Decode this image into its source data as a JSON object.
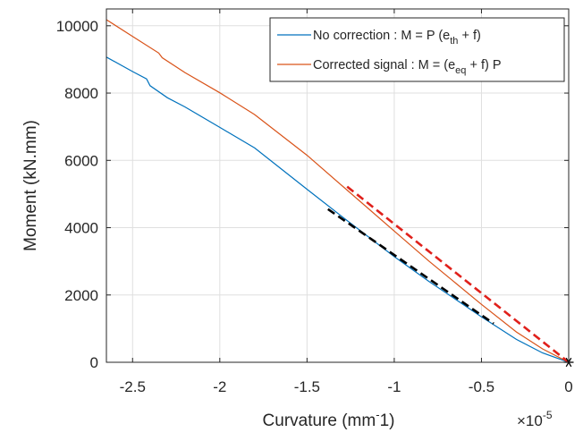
{
  "chart_data": {
    "type": "line",
    "xlabel": "Curvature (mm",
    "xlabel_superscript": "-",
    "xlabel_suffix": "1)",
    "ylabel": "Moment (kN.mm)",
    "xlim": [
      -2.65,
      0
    ],
    "ylim": [
      0,
      10500
    ],
    "x_exponent_label": {
      "base": "×10",
      "exponent": "-5"
    },
    "x_ticks": [
      -2.5,
      -2,
      -1.5,
      -1,
      -0.5,
      0
    ],
    "x_tick_labels": [
      "-2.5",
      "-2",
      "-1.5",
      "-1",
      "-0.5",
      "0"
    ],
    "y_ticks": [
      0,
      2000,
      4000,
      6000,
      8000,
      10000
    ],
    "y_tick_labels": [
      "0",
      "2000",
      "4000",
      "6000",
      "8000",
      "10000"
    ],
    "grid": true,
    "legend_position": "top-right",
    "series": [
      {
        "name": "No correction : M = P (e",
        "name_sub": "th",
        "name_suffix": " + f)",
        "color": "#0072BD",
        "x": [
          -2.65,
          -2.5,
          -2.42,
          -2.4,
          -2.3,
          -2.2,
          -2.0,
          -1.8,
          -1.5,
          -1.3,
          -1.0,
          -0.8,
          -0.5,
          -0.3,
          -0.15,
          0
        ],
        "y": [
          9070,
          8640,
          8420,
          8220,
          7860,
          7590,
          6980,
          6370,
          5140,
          4330,
          3140,
          2400,
          1350,
          680,
          280,
          0
        ]
      },
      {
        "name": "Corrected signal : M = (e",
        "name_sub": "eq",
        "name_suffix": " + f) P",
        "color": "#D95319",
        "x": [
          -2.65,
          -2.5,
          -2.35,
          -2.33,
          -2.2,
          -2.0,
          -1.8,
          -1.5,
          -1.3,
          -1.0,
          -0.8,
          -0.5,
          -0.3,
          -0.15,
          0
        ],
        "y": [
          10180,
          9680,
          9190,
          9050,
          8610,
          8010,
          7360,
          6150,
          5250,
          3900,
          3000,
          1720,
          900,
          400,
          0
        ]
      }
    ],
    "fit_lines": [
      {
        "color": "#000000",
        "x": [
          -1.38,
          -0.43
        ],
        "y": [
          4550,
          1150
        ]
      },
      {
        "color": "#E0201B",
        "x": [
          -1.27,
          0
        ],
        "y": [
          5220,
          0
        ]
      }
    ],
    "marker": {
      "symbol": "asterisk",
      "x": 0,
      "y": 0,
      "color": "#000000"
    }
  }
}
